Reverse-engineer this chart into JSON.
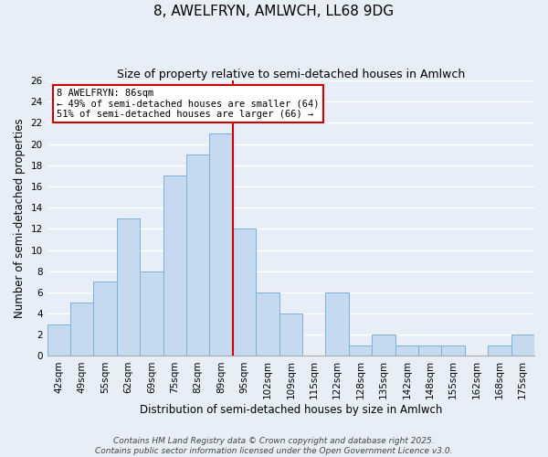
{
  "title": "8, AWELFRYN, AMLWCH, LL68 9DG",
  "subtitle": "Size of property relative to semi-detached houses in Amlwch",
  "xlabel": "Distribution of semi-detached houses by size in Amlwch",
  "ylabel": "Number of semi-detached properties",
  "categories": [
    "42sqm",
    "49sqm",
    "55sqm",
    "62sqm",
    "69sqm",
    "75sqm",
    "82sqm",
    "89sqm",
    "95sqm",
    "102sqm",
    "109sqm",
    "115sqm",
    "122sqm",
    "128sqm",
    "135sqm",
    "142sqm",
    "148sqm",
    "155sqm",
    "162sqm",
    "168sqm",
    "175sqm"
  ],
  "values": [
    3,
    5,
    7,
    13,
    8,
    17,
    19,
    21,
    12,
    6,
    4,
    0,
    6,
    1,
    2,
    1,
    1,
    1,
    0,
    1,
    2
  ],
  "bar_color": "#c5d9f0",
  "bar_edgecolor": "#7ab0d8",
  "vline_index": 7,
  "vline_color": "#cc0000",
  "ylim": [
    0,
    26
  ],
  "yticks": [
    0,
    2,
    4,
    6,
    8,
    10,
    12,
    14,
    16,
    18,
    20,
    22,
    24,
    26
  ],
  "annotation_title": "8 AWELFRYN: 86sqm",
  "annotation_line1": "← 49% of semi-detached houses are smaller (64)",
  "annotation_line2": "51% of semi-detached houses are larger (66) →",
  "annotation_box_color": "#ffffff",
  "annotation_box_edgecolor": "#cc0000",
  "footer_line1": "Contains HM Land Registry data © Crown copyright and database right 2025.",
  "footer_line2": "Contains public sector information licensed under the Open Government Licence v3.0.",
  "background_color": "#e8eef8",
  "grid_color": "#ffffff",
  "title_fontsize": 11,
  "subtitle_fontsize": 9,
  "axis_label_fontsize": 8.5,
  "tick_fontsize": 7.5,
  "footer_fontsize": 6.5
}
